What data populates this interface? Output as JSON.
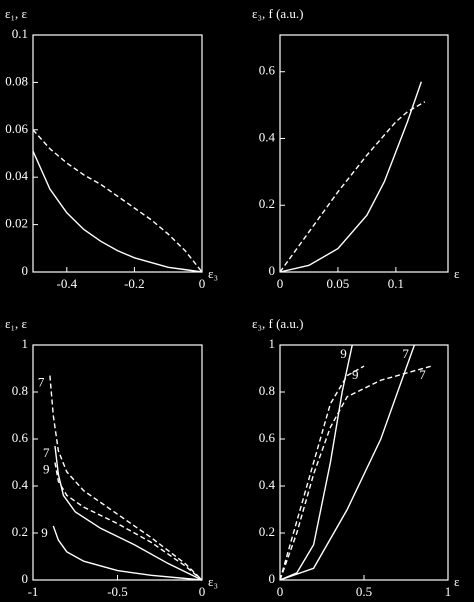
{
  "chart_data": [
    {
      "type": "line",
      "y_label": "ε₁, ε",
      "x_label": "ε₃",
      "xlim": [
        -0.5,
        0
      ],
      "ylim": [
        0,
        0.1
      ],
      "xticks": [
        -0.4,
        -0.2,
        0
      ],
      "yticks": [
        0,
        0.02,
        0.04,
        0.06,
        0.08,
        0.1
      ],
      "series": [
        {
          "color": "#ffffff",
          "dashed": false,
          "x": [
            -0.5,
            -0.45,
            -0.4,
            -0.35,
            -0.3,
            -0.25,
            -0.2,
            -0.15,
            -0.1,
            -0.05,
            0
          ],
          "values": [
            0.051,
            0.035,
            0.025,
            0.018,
            0.013,
            0.009,
            0.006,
            0.004,
            0.002,
            0.001,
            0
          ]
        },
        {
          "color": "#ffffff",
          "dashed": true,
          "x": [
            -0.5,
            -0.45,
            -0.4,
            -0.35,
            -0.3,
            -0.25,
            -0.2,
            -0.15,
            -0.1,
            -0.05,
            0
          ],
          "values": [
            0.06,
            0.052,
            0.046,
            0.041,
            0.037,
            0.032,
            0.027,
            0.022,
            0.016,
            0.009,
            0
          ]
        }
      ]
    },
    {
      "type": "line",
      "y_label": "ε₃, f (a.u.)",
      "x_label": "ε",
      "xlim": [
        0,
        0.145
      ],
      "ylim": [
        0,
        0.71
      ],
      "xticks": [
        0,
        0.05,
        0.1
      ],
      "yticks": [
        0,
        0.2,
        0.4,
        0.6
      ],
      "series": [
        {
          "color": "#ffffff",
          "dashed": false,
          "x": [
            0,
            0.025,
            0.05,
            0.075,
            0.09,
            0.1,
            0.11,
            0.122
          ],
          "values": [
            0,
            0.02,
            0.07,
            0.17,
            0.27,
            0.36,
            0.45,
            0.57
          ]
        },
        {
          "color": "#ffffff",
          "dashed": true,
          "x": [
            0,
            0.025,
            0.05,
            0.075,
            0.09,
            0.1,
            0.11,
            0.125
          ],
          "values": [
            0,
            0.12,
            0.24,
            0.35,
            0.41,
            0.45,
            0.48,
            0.51
          ]
        }
      ]
    },
    {
      "type": "line",
      "y_label": "ε₁, ε",
      "x_label": "ε₃",
      "xlim": [
        -1,
        0
      ],
      "ylim": [
        0,
        1
      ],
      "xticks": [
        -1,
        -0.5,
        0
      ],
      "yticks": [
        0,
        0.2,
        0.4,
        0.6,
        0.8,
        1
      ],
      "series": [
        {
          "name": "7",
          "color": "#ffffff",
          "dashed": true,
          "x": [
            -0.9,
            -0.88,
            -0.85,
            -0.8,
            -0.7,
            -0.5,
            -0.3,
            -0.1,
            0
          ],
          "values": [
            0.87,
            0.7,
            0.55,
            0.46,
            0.38,
            0.28,
            0.18,
            0.07,
            0
          ]
        },
        {
          "name": "7",
          "color": "#ffffff",
          "dashed": false,
          "x": [
            -0.87,
            -0.85,
            -0.82,
            -0.75,
            -0.6,
            -0.4,
            -0.2,
            0
          ],
          "values": [
            0.57,
            0.45,
            0.36,
            0.29,
            0.22,
            0.15,
            0.07,
            0
          ]
        },
        {
          "name": "9",
          "color": "#ffffff",
          "dashed": true,
          "x": [
            -0.87,
            -0.85,
            -0.8,
            -0.7,
            -0.5,
            -0.3,
            -0.1,
            0
          ],
          "values": [
            0.5,
            0.42,
            0.36,
            0.31,
            0.24,
            0.16,
            0.06,
            0
          ]
        },
        {
          "name": "9",
          "color": "#ffffff",
          "dashed": false,
          "x": [
            -0.88,
            -0.85,
            -0.8,
            -0.7,
            -0.5,
            -0.3,
            0
          ],
          "values": [
            0.23,
            0.17,
            0.12,
            0.08,
            0.04,
            0.02,
            0
          ]
        }
      ]
    },
    {
      "type": "line",
      "y_label": "ε₃, f (a.u.)",
      "x_label": "ε",
      "xlim": [
        0,
        1
      ],
      "ylim": [
        0,
        1
      ],
      "xticks": [
        0,
        0.5,
        1
      ],
      "yticks": [
        0,
        0.2,
        0.4,
        0.6,
        0.8,
        1
      ],
      "series": [
        {
          "name": "9",
          "color": "#ffffff",
          "dashed": false,
          "x": [
            0,
            0.1,
            0.2,
            0.3,
            0.37,
            0.43
          ],
          "values": [
            0,
            0.03,
            0.15,
            0.5,
            0.8,
            1
          ]
        },
        {
          "name": "7",
          "color": "#ffffff",
          "dashed": false,
          "x": [
            0,
            0.2,
            0.4,
            0.6,
            0.8
          ],
          "values": [
            0,
            0.05,
            0.3,
            0.6,
            1
          ]
        },
        {
          "name": "9",
          "color": "#ffffff",
          "dashed": true,
          "x": [
            0,
            0.1,
            0.2,
            0.3,
            0.4,
            0.5
          ],
          "values": [
            0,
            0.25,
            0.5,
            0.75,
            0.87,
            0.91
          ]
        },
        {
          "name": "7",
          "color": "#ffffff",
          "dashed": true,
          "x": [
            0,
            0.1,
            0.2,
            0.3,
            0.4,
            0.6,
            0.8,
            0.9
          ],
          "values": [
            0,
            0.2,
            0.45,
            0.65,
            0.78,
            0.85,
            0.89,
            0.91
          ]
        }
      ]
    }
  ]
}
